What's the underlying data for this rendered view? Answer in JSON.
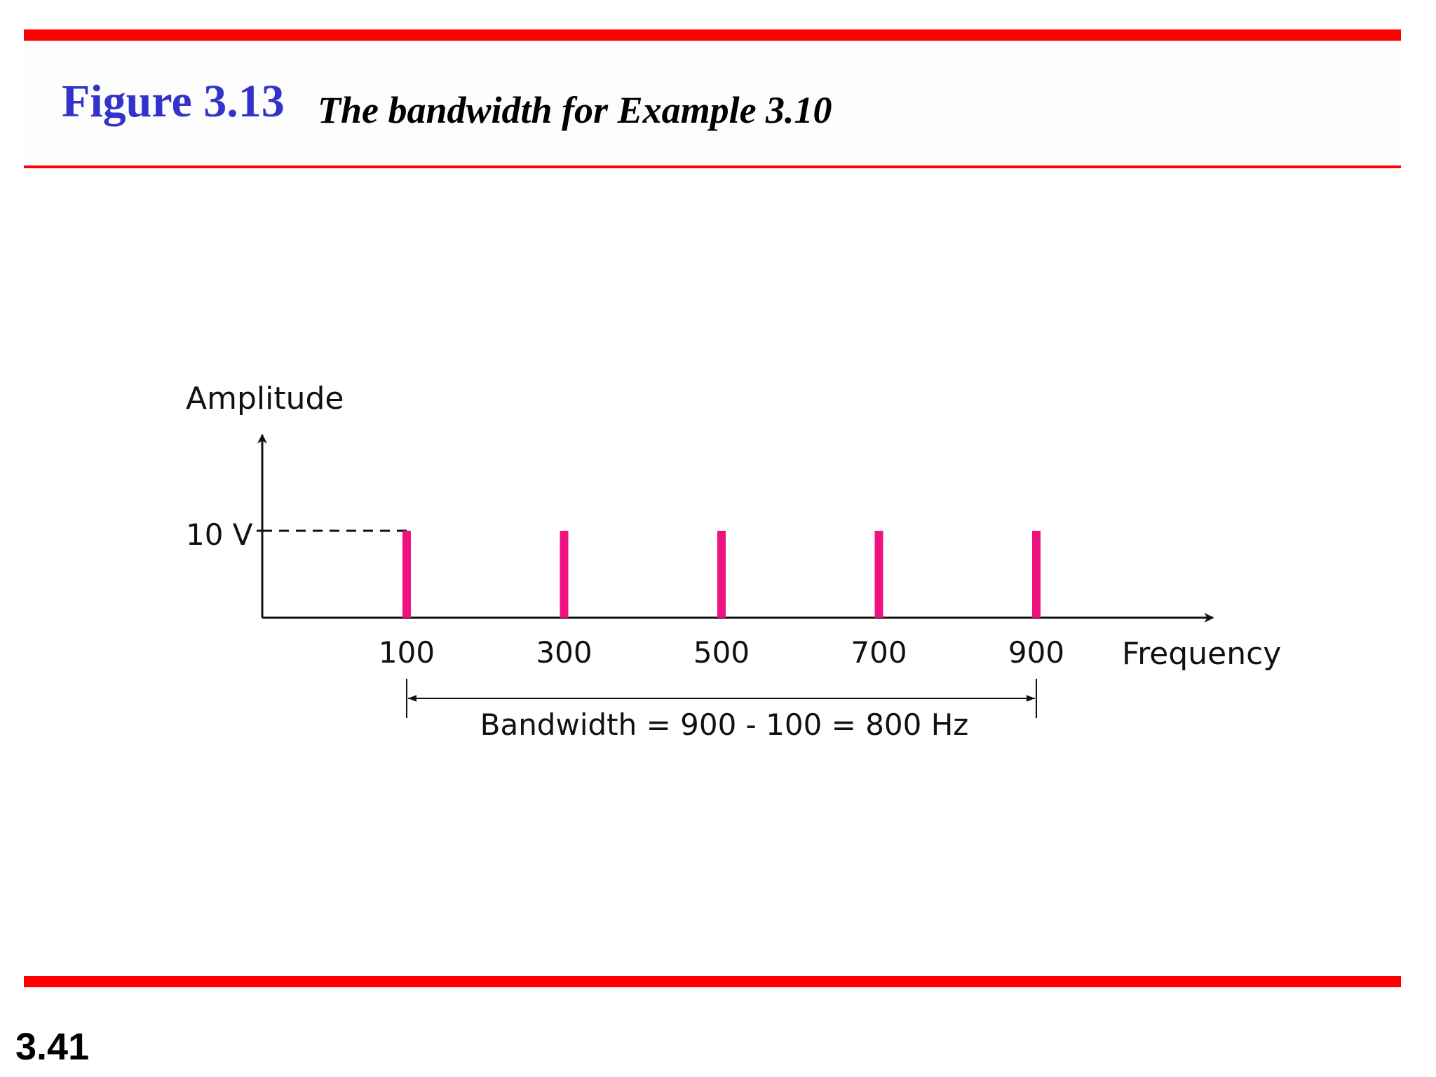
{
  "colors": {
    "rule": "#ff0000",
    "title_accent": "#3333cc",
    "bar": "#ee1180",
    "axis": "#111111"
  },
  "header": {
    "figure_label": "Figure 3.13",
    "caption": "The bandwidth for Example 3.10"
  },
  "chart_data": {
    "type": "bar",
    "xlabel": "Frequency",
    "ylabel": "Amplitude",
    "x": [
      100,
      300,
      500,
      700,
      900
    ],
    "tick_labels": [
      "100",
      "300",
      "500",
      "700",
      "900"
    ],
    "values": [
      10,
      10,
      10,
      10,
      10
    ],
    "y_tick_label": "10 V",
    "xlim": [
      -270,
      1100
    ],
    "ylim": [
      0,
      13.1
    ],
    "grid": false,
    "annotation": {
      "text": "Bandwidth = 900 - 100 = 800 Hz",
      "from": 100,
      "to": 900
    }
  },
  "footer": {
    "slide_number": "3.41"
  }
}
